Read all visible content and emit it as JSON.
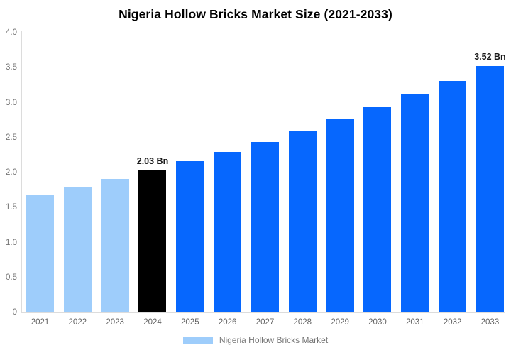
{
  "title": "Nigeria Hollow Bricks Market Size (2021-2033)",
  "legend": {
    "label": "Nigeria Hollow Bricks Market",
    "swatch_color": "#9ECDFB"
  },
  "colors": {
    "historical_bar": "#9ECDFB",
    "base_year_bar": "#000000",
    "forecast_bar": "#0667FE",
    "axis_line": "#DCDCDC",
    "y_tick_text": "#757575",
    "x_tick_text": "#636363",
    "annotation_text": "#1A1A1A",
    "title_text": "#000000"
  },
  "chart_data": {
    "type": "bar",
    "title": "Nigeria Hollow Bricks Market Size (2021-2033)",
    "categories": [
      "2021",
      "2022",
      "2023",
      "2024",
      "2025",
      "2026",
      "2027",
      "2028",
      "2029",
      "2030",
      "2031",
      "2032",
      "2033"
    ],
    "values": [
      1.69,
      1.8,
      1.91,
      2.03,
      2.16,
      2.29,
      2.44,
      2.59,
      2.76,
      2.93,
      3.12,
      3.31,
      3.52
    ],
    "unit": "Bn",
    "bar_colors": [
      "#9ECDFB",
      "#9ECDFB",
      "#9ECDFB",
      "#000000",
      "#0667FE",
      "#0667FE",
      "#0667FE",
      "#0667FE",
      "#0667FE",
      "#0667FE",
      "#0667FE",
      "#0667FE",
      "#0667FE"
    ],
    "annotations": [
      {
        "category": "2024",
        "text": "2.03 Bn"
      },
      {
        "category": "2033",
        "text": "3.52 Bn"
      }
    ],
    "xlabel": "",
    "ylabel": "",
    "ylim": [
      0,
      4
    ],
    "yticks": [
      {
        "value": 4.0,
        "label": "4.0"
      },
      {
        "value": 3.5,
        "label": "3.5"
      },
      {
        "value": 3.0,
        "label": "3.0"
      },
      {
        "value": 2.5,
        "label": "2.5"
      },
      {
        "value": 2.0,
        "label": "2.0"
      },
      {
        "value": 1.5,
        "label": "1.5"
      },
      {
        "value": 1.0,
        "label": "1.0"
      },
      {
        "value": 0.5,
        "label": "0.5"
      },
      {
        "value": 0.0,
        "label": "0"
      }
    ],
    "grid": false,
    "legend_entries": [
      "Nigeria Hollow Bricks Market"
    ],
    "legend_position": "bottom"
  }
}
